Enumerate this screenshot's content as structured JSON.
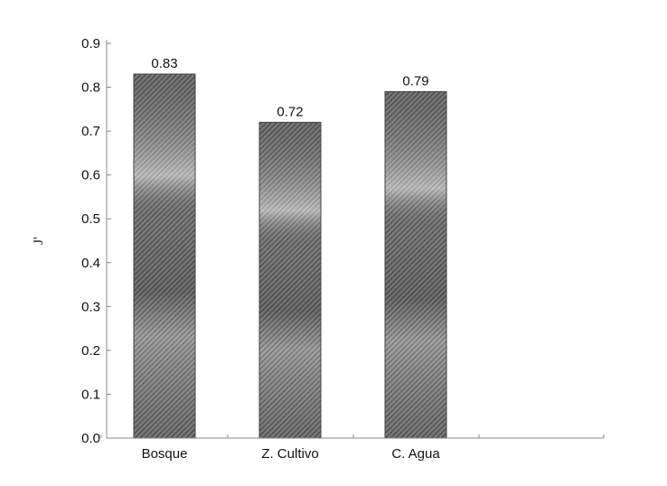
{
  "chart_data": {
    "type": "bar",
    "categories": [
      "Bosque",
      "Z. Cultivo",
      "C. Agua"
    ],
    "values": [
      0.83,
      0.72,
      0.79
    ],
    "data_labels": [
      "0.83",
      "0.72",
      "0.79"
    ],
    "ylabel": "J'",
    "ylim": [
      0,
      0.9
    ],
    "yticks": [
      "0.0",
      "0.1",
      "0.2",
      "0.3",
      "0.4",
      "0.5",
      "0.6",
      "0.7",
      "0.8",
      "0.9"
    ],
    "grid": false,
    "bar_color": "#555555"
  }
}
